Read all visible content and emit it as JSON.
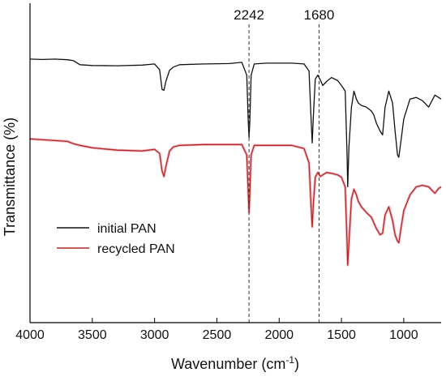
{
  "chart_data": {
    "type": "line",
    "title": "",
    "xlabel": "Wavenumber (cm",
    "xlabel_sup": "-1",
    "xlabel_close": ")",
    "ylabel": "Transmittance (%)",
    "xlim": [
      4000,
      700
    ],
    "xticks": [
      4000,
      3500,
      3000,
      2500,
      2000,
      1500,
      1000
    ],
    "yticks_shown": false,
    "grid": false,
    "legend_position": "lower-left",
    "annotations": [
      {
        "x": 2242,
        "label": "2242",
        "style": "dashed-vertical-line"
      },
      {
        "x": 1680,
        "label": "1680",
        "style": "dashed-vertical-line"
      }
    ],
    "series": [
      {
        "name": "initial PAN",
        "color": "#111111",
        "points": [
          [
            4000,
            70
          ],
          [
            3900,
            70.5
          ],
          [
            3800,
            70
          ],
          [
            3700,
            70.8
          ],
          [
            3650,
            72
          ],
          [
            3600,
            77
          ],
          [
            3500,
            78
          ],
          [
            3300,
            78.3
          ],
          [
            3100,
            77.5
          ],
          [
            3000,
            76
          ],
          [
            2960,
            83
          ],
          [
            2940,
            108
          ],
          [
            2925,
            109
          ],
          [
            2910,
            98
          ],
          [
            2880,
            84
          ],
          [
            2850,
            80
          ],
          [
            2800,
            77
          ],
          [
            2600,
            76
          ],
          [
            2400,
            75.5
          ],
          [
            2300,
            74
          ],
          [
            2260,
            90
          ],
          [
            2248,
            150
          ],
          [
            2242,
            168
          ],
          [
            2236,
            150
          ],
          [
            2225,
            90
          ],
          [
            2200,
            76
          ],
          [
            2100,
            75
          ],
          [
            1900,
            75
          ],
          [
            1800,
            76
          ],
          [
            1760,
            85
          ],
          [
            1745,
            140
          ],
          [
            1735,
            175
          ],
          [
            1725,
            140
          ],
          [
            1710,
            95
          ],
          [
            1690,
            90
          ],
          [
            1670,
            96
          ],
          [
            1650,
            103
          ],
          [
            1620,
            98
          ],
          [
            1580,
            93
          ],
          [
            1530,
            97
          ],
          [
            1500,
            103
          ],
          [
            1470,
            110
          ],
          [
            1455,
            190
          ],
          [
            1450,
            230
          ],
          [
            1440,
            180
          ],
          [
            1420,
            130
          ],
          [
            1400,
            110
          ],
          [
            1380,
            120
          ],
          [
            1365,
            125
          ],
          [
            1340,
            128
          ],
          [
            1300,
            130
          ],
          [
            1260,
            135
          ],
          [
            1240,
            140
          ],
          [
            1220,
            150
          ],
          [
            1190,
            160
          ],
          [
            1170,
            165
          ],
          [
            1150,
            130
          ],
          [
            1120,
            110
          ],
          [
            1090,
            125
          ],
          [
            1070,
            160
          ],
          [
            1050,
            190
          ],
          [
            1040,
            193
          ],
          [
            1020,
            170
          ],
          [
            1000,
            145
          ],
          [
            950,
            120
          ],
          [
            900,
            118
          ],
          [
            850,
            122
          ],
          [
            800,
            130
          ],
          [
            750,
            115
          ],
          [
            720,
            118
          ],
          [
            700,
            120
          ]
        ]
      },
      {
        "name": "recycled PAN",
        "color": "#b22a22",
        "points": [
          [
            4000,
            170
          ],
          [
            3900,
            171
          ],
          [
            3800,
            172
          ],
          [
            3700,
            173
          ],
          [
            3650,
            176
          ],
          [
            3600,
            178
          ],
          [
            3500,
            181
          ],
          [
            3300,
            184
          ],
          [
            3100,
            185
          ],
          [
            3000,
            183
          ],
          [
            2960,
            188
          ],
          [
            2940,
            210
          ],
          [
            2925,
            217
          ],
          [
            2910,
            205
          ],
          [
            2880,
            185
          ],
          [
            2850,
            180
          ],
          [
            2800,
            178
          ],
          [
            2600,
            177
          ],
          [
            2400,
            177
          ],
          [
            2300,
            177
          ],
          [
            2260,
            190
          ],
          [
            2248,
            240
          ],
          [
            2242,
            262
          ],
          [
            2236,
            240
          ],
          [
            2225,
            190
          ],
          [
            2200,
            178
          ],
          [
            2100,
            178
          ],
          [
            1900,
            178
          ],
          [
            1800,
            182
          ],
          [
            1760,
            200
          ],
          [
            1745,
            250
          ],
          [
            1735,
            280
          ],
          [
            1725,
            250
          ],
          [
            1710,
            218
          ],
          [
            1690,
            212
          ],
          [
            1670,
            217
          ],
          [
            1650,
            215
          ],
          [
            1620,
            212
          ],
          [
            1580,
            213
          ],
          [
            1530,
            215
          ],
          [
            1500,
            218
          ],
          [
            1470,
            230
          ],
          [
            1455,
            300
          ],
          [
            1450,
            328
          ],
          [
            1440,
            300
          ],
          [
            1420,
            245
          ],
          [
            1400,
            233
          ],
          [
            1380,
            240
          ],
          [
            1365,
            248
          ],
          [
            1340,
            255
          ],
          [
            1300,
            262
          ],
          [
            1260,
            268
          ],
          [
            1240,
            275
          ],
          [
            1220,
            282
          ],
          [
            1190,
            290
          ],
          [
            1170,
            288
          ],
          [
            1150,
            265
          ],
          [
            1120,
            255
          ],
          [
            1090,
            272
          ],
          [
            1070,
            290
          ],
          [
            1050,
            298
          ],
          [
            1040,
            300
          ],
          [
            1020,
            280
          ],
          [
            1000,
            260
          ],
          [
            950,
            240
          ],
          [
            900,
            230
          ],
          [
            850,
            228
          ],
          [
            800,
            230
          ],
          [
            750,
            238
          ],
          [
            720,
            232
          ],
          [
            700,
            230
          ]
        ]
      }
    ]
  }
}
